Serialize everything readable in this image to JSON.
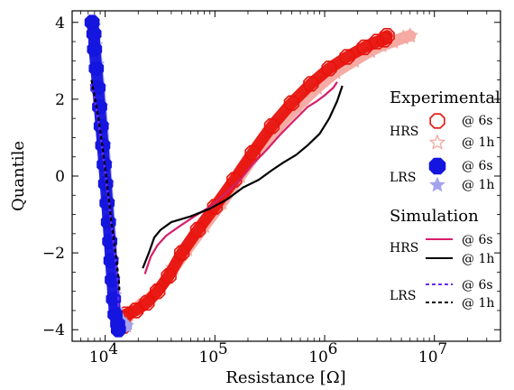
{
  "chart_data": {
    "type": "scatter",
    "xscale": "log",
    "xlim": [
      5000,
      40000000
    ],
    "ylim": [
      -4.3,
      4.3
    ],
    "xlabel": "Resistance [Ω]",
    "ylabel": "Quantile",
    "xticks": [
      {
        "value": 10000,
        "base": "10",
        "exp": "4"
      },
      {
        "value": 100000,
        "base": "10",
        "exp": "5"
      },
      {
        "value": 1000000,
        "base": "10",
        "exp": "6"
      },
      {
        "value": 10000000,
        "base": "10",
        "exp": "7"
      }
    ],
    "yticks": [
      {
        "value": 4,
        "label": "4"
      },
      {
        "value": 2,
        "label": "2"
      },
      {
        "value": 0,
        "label": "0"
      },
      {
        "value": -2,
        "label": "−2"
      },
      {
        "value": -4,
        "label": "−4"
      }
    ],
    "grid": false,
    "legend": {
      "position": "right",
      "experimental_title": "Experimental",
      "simulation_title": "Simulation",
      "hrs_label": "HRS",
      "lrs_label": "LRS",
      "t6s_label": "@ 6s",
      "t1h_label": "@ 1h"
    },
    "series": [
      {
        "name": "HRS @ 6s",
        "group": "Experimental",
        "style": "markers",
        "marker": "octagon-open",
        "color": "#e8120c",
        "points": [
          [
            14800,
            -3.9
          ],
          [
            14500,
            -3.7
          ],
          [
            15500,
            -3.6
          ],
          [
            19000,
            -3.5
          ],
          [
            24000,
            -3.3
          ],
          [
            30000,
            -3.0
          ],
          [
            38000,
            -2.6
          ],
          [
            50000,
            -2.0
          ],
          [
            70000,
            -1.4
          ],
          [
            100000,
            -0.8
          ],
          [
            150000,
            -0.1
          ],
          [
            220000,
            0.6
          ],
          [
            330000,
            1.3
          ],
          [
            500000,
            1.9
          ],
          [
            750000,
            2.4
          ],
          [
            1100000,
            2.8
          ],
          [
            1600000,
            3.1
          ],
          [
            2300000,
            3.35
          ],
          [
            3000000,
            3.5
          ],
          [
            3500000,
            3.55
          ],
          [
            3700000,
            3.65
          ]
        ]
      },
      {
        "name": "HRS @ 1h",
        "group": "Experimental",
        "style": "markers",
        "marker": "star-open",
        "color": "#f4a8a0",
        "points": [
          [
            15500,
            -3.8
          ],
          [
            16000,
            -3.6
          ],
          [
            20000,
            -3.4
          ],
          [
            25000,
            -3.2
          ],
          [
            32000,
            -2.9
          ],
          [
            42000,
            -2.4
          ],
          [
            56000,
            -1.9
          ],
          [
            80000,
            -1.3
          ],
          [
            115000,
            -0.7
          ],
          [
            170000,
            0.0
          ],
          [
            250000,
            0.7
          ],
          [
            380000,
            1.3
          ],
          [
            560000,
            1.8
          ],
          [
            850000,
            2.3
          ],
          [
            1250000,
            2.7
          ],
          [
            1850000,
            3.0
          ],
          [
            2600000,
            3.25
          ],
          [
            3300000,
            3.4
          ],
          [
            4200000,
            3.5
          ],
          [
            5200000,
            3.6
          ],
          [
            6000000,
            3.65
          ]
        ]
      },
      {
        "name": "LRS @ 6s",
        "group": "Experimental",
        "style": "markers",
        "marker": "octagon-filled",
        "color": "#1515e0",
        "points": [
          [
            7600,
            4.0
          ],
          [
            7900,
            3.7
          ],
          [
            8000,
            3.3
          ],
          [
            8300,
            2.8
          ],
          [
            8600,
            2.3
          ],
          [
            8900,
            1.8
          ],
          [
            9200,
            1.3
          ],
          [
            9500,
            0.8
          ],
          [
            9800,
            0.3
          ],
          [
            10100,
            -0.2
          ],
          [
            10400,
            -0.7
          ],
          [
            10700,
            -1.2
          ],
          [
            11000,
            -1.7
          ],
          [
            11300,
            -2.2
          ],
          [
            11600,
            -2.7
          ],
          [
            11900,
            -3.2
          ],
          [
            12300,
            -3.6
          ],
          [
            13000,
            -3.85
          ],
          [
            13200,
            -4.0
          ]
        ]
      },
      {
        "name": "LRS @ 1h",
        "group": "Experimental",
        "style": "markers",
        "marker": "star-filled",
        "color": "#a3a3ee",
        "points": [
          [
            7800,
            3.9
          ],
          [
            8100,
            3.4
          ],
          [
            8400,
            2.9
          ],
          [
            8800,
            2.3
          ],
          [
            9100,
            1.8
          ],
          [
            9400,
            1.3
          ],
          [
            9700,
            0.8
          ],
          [
            10000,
            0.3
          ],
          [
            10300,
            -0.2
          ],
          [
            10600,
            -0.7
          ],
          [
            10900,
            -1.2
          ],
          [
            11200,
            -1.7
          ],
          [
            11500,
            -2.2
          ],
          [
            11800,
            -2.7
          ],
          [
            12100,
            -3.1
          ],
          [
            12400,
            -3.5
          ],
          [
            13500,
            -3.75
          ],
          [
            15600,
            -3.9
          ]
        ]
      },
      {
        "name": "HRS @ 6s",
        "group": "Simulation",
        "style": "solid",
        "color": "#d61f6a",
        "points": [
          [
            23000,
            -2.55
          ],
          [
            26000,
            -2.1
          ],
          [
            30000,
            -1.8
          ],
          [
            36000,
            -1.55
          ],
          [
            48000,
            -1.3
          ],
          [
            65000,
            -1.05
          ],
          [
            90000,
            -0.8
          ],
          [
            120000,
            -0.5
          ],
          [
            170000,
            -0.1
          ],
          [
            220000,
            0.3
          ],
          [
            300000,
            0.7
          ],
          [
            400000,
            1.1
          ],
          [
            550000,
            1.5
          ],
          [
            700000,
            1.8
          ],
          [
            850000,
            1.95
          ],
          [
            1000000,
            2.1
          ],
          [
            1200000,
            2.3
          ],
          [
            1300000,
            2.45
          ]
        ]
      },
      {
        "name": "HRS @ 1h",
        "group": "Simulation",
        "style": "solid",
        "color": "#000000",
        "points": [
          [
            22000,
            -2.4
          ],
          [
            25000,
            -2.0
          ],
          [
            28000,
            -1.6
          ],
          [
            32000,
            -1.4
          ],
          [
            40000,
            -1.2
          ],
          [
            60000,
            -1.05
          ],
          [
            90000,
            -0.85
          ],
          [
            130000,
            -0.6
          ],
          [
            180000,
            -0.3
          ],
          [
            250000,
            -0.1
          ],
          [
            330000,
            0.15
          ],
          [
            420000,
            0.35
          ],
          [
            550000,
            0.55
          ],
          [
            700000,
            0.8
          ],
          [
            900000,
            1.1
          ],
          [
            1100000,
            1.5
          ],
          [
            1300000,
            1.95
          ],
          [
            1450000,
            2.35
          ]
        ]
      },
      {
        "name": "LRS @ 6s",
        "group": "Simulation",
        "style": "dashed",
        "color": "#6a2cf0",
        "points": [
          [
            7400,
            2.4
          ],
          [
            8000,
            2.0
          ],
          [
            8600,
            1.5
          ],
          [
            9300,
            0.8
          ],
          [
            10000,
            0.1
          ],
          [
            10700,
            -0.6
          ],
          [
            11400,
            -1.3
          ],
          [
            12100,
            -1.9
          ],
          [
            12700,
            -2.4
          ],
          [
            13100,
            -2.9
          ],
          [
            13200,
            -3.2
          ],
          [
            13150,
            -3.4
          ]
        ]
      },
      {
        "name": "LRS @ 1h",
        "group": "Simulation",
        "style": "dashed",
        "color": "#000000",
        "points": [
          [
            7500,
            2.5
          ],
          [
            8100,
            2.0
          ],
          [
            8700,
            1.5
          ],
          [
            9400,
            0.8
          ],
          [
            10100,
            0.1
          ],
          [
            10800,
            -0.6
          ],
          [
            11500,
            -1.3
          ],
          [
            12200,
            -1.8
          ],
          [
            12800,
            -2.3
          ],
          [
            13300,
            -2.7
          ],
          [
            13500,
            -3.0
          ]
        ]
      }
    ]
  }
}
